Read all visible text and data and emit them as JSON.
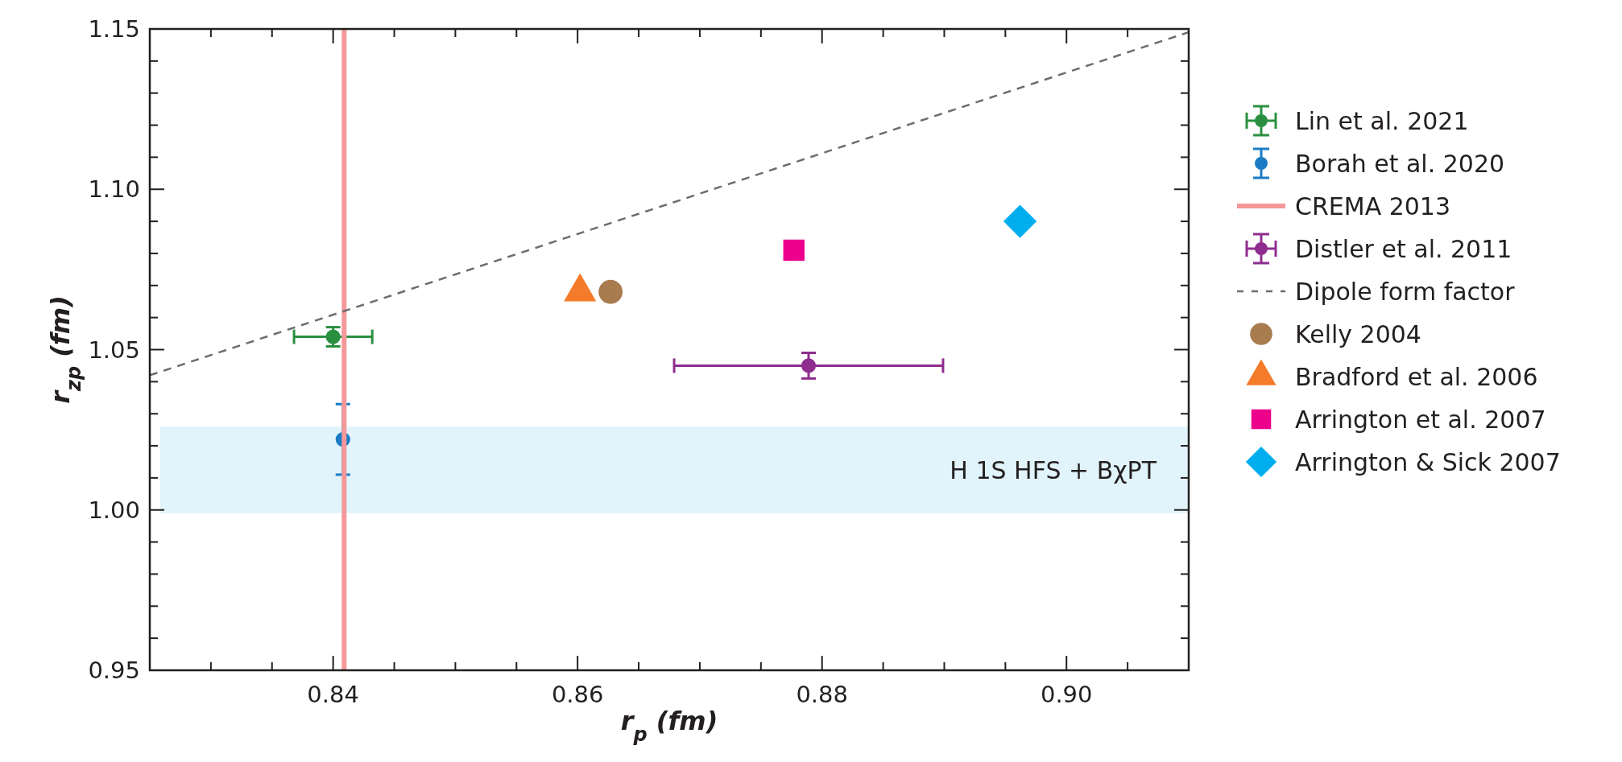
{
  "chart_data": {
    "type": "scatter",
    "xlabel": "r$_{p}$ (fm)",
    "ylabel": "r$_{zp}$ (fm)",
    "xlim": [
      0.825,
      0.91
    ],
    "ylim": [
      0.95,
      1.15
    ],
    "xticks": [
      {
        "value": 0.83,
        "label": null
      },
      {
        "value": 0.835,
        "label": null
      },
      0.84,
      {
        "value": 0.845,
        "label": null
      },
      {
        "value": 0.85,
        "label": null
      },
      {
        "value": 0.855,
        "label": null
      },
      0.86,
      {
        "value": 0.865,
        "label": null
      },
      {
        "value": 0.87,
        "label": null
      },
      {
        "value": 0.875,
        "label": null
      },
      0.88,
      {
        "value": 0.885,
        "label": null
      },
      {
        "value": 0.89,
        "label": null
      },
      {
        "value": 0.895,
        "label": null
      },
      {
        "value": 0.9,
        "label": "0.90"
      },
      {
        "value": 0.905,
        "label": null
      }
    ],
    "yticks": [
      0.95,
      {
        "value": 0.96,
        "label": null
      },
      {
        "value": 0.97,
        "label": null
      },
      {
        "value": 0.98,
        "label": null
      },
      {
        "value": 0.99,
        "label": null
      },
      {
        "value": 1.0,
        "label": "1.00"
      },
      {
        "value": 1.01,
        "label": null
      },
      {
        "value": 1.02,
        "label": null
      },
      {
        "value": 1.03,
        "label": null
      },
      {
        "value": 1.04,
        "label": null
      },
      1.05,
      {
        "value": 1.06,
        "label": null
      },
      {
        "value": 1.07,
        "label": null
      },
      {
        "value": 1.08,
        "label": null
      },
      {
        "value": 1.09,
        "label": null
      },
      {
        "value": 1.1,
        "label": "1.10"
      },
      {
        "value": 1.11,
        "label": null
      },
      {
        "value": 1.12,
        "label": null
      },
      {
        "value": 1.13,
        "label": null
      },
      {
        "value": 1.14,
        "label": null
      },
      1.15
    ],
    "legend": "right",
    "grid": false,
    "bands": [
      {
        "axis": "y",
        "from": 0.999,
        "to": 1.026,
        "label": "H 1S HFS + BχPT",
        "color": "#e1f3fb"
      }
    ],
    "series": [
      {
        "name": "Lin et al. 2021",
        "marker": "circle",
        "color": "#2a9040",
        "x": [
          0.84
        ],
        "values": [
          1.054
        ],
        "errors": [
          0.003
        ],
        "xerrors": [
          0.0032
        ]
      },
      {
        "name": "Borah et al. 2020",
        "marker": "circle",
        "color": "#1a7cc4",
        "x": [
          0.8408
        ],
        "values": [
          1.022
        ],
        "errors": [
          0.011
        ]
      },
      {
        "name": "CREMA 2013",
        "type": "line",
        "line_style": "solid",
        "color": "#f4989a",
        "x": [
          0.8409,
          0.8409
        ],
        "values": [
          0.95,
          1.15
        ]
      },
      {
        "name": "Distler et al. 2011",
        "marker": "circle",
        "color": "#8e2d8e",
        "x": [
          0.8789
        ],
        "values": [
          1.045
        ],
        "errors": [
          0.004
        ],
        "xerrors": [
          0.011
        ]
      },
      {
        "name": "Dipole form factor",
        "type": "line",
        "line_style": "dashed",
        "color": "#6d6d6d",
        "x": [
          0.825,
          0.91
        ],
        "values": [
          1.042,
          1.149
        ]
      },
      {
        "name": "Kelly 2004",
        "marker": "circle",
        "color": "#a97c50",
        "x": [
          0.8627
        ],
        "values": [
          1.068
        ]
      },
      {
        "name": "Bradford et al. 2006",
        "marker": "triangle",
        "color": "#f47b2a",
        "x": [
          0.8602
        ],
        "values": [
          1.068
        ]
      },
      {
        "name": "Arrington et al. 2007",
        "marker": "square",
        "color": "#ec008c",
        "x": [
          0.8777
        ],
        "values": [
          1.081
        ]
      },
      {
        "name": "Arrington & Sick 2007",
        "marker": "diamond",
        "color": "#00aeef",
        "x": [
          0.8962
        ],
        "values": [
          1.09
        ]
      }
    ]
  }
}
